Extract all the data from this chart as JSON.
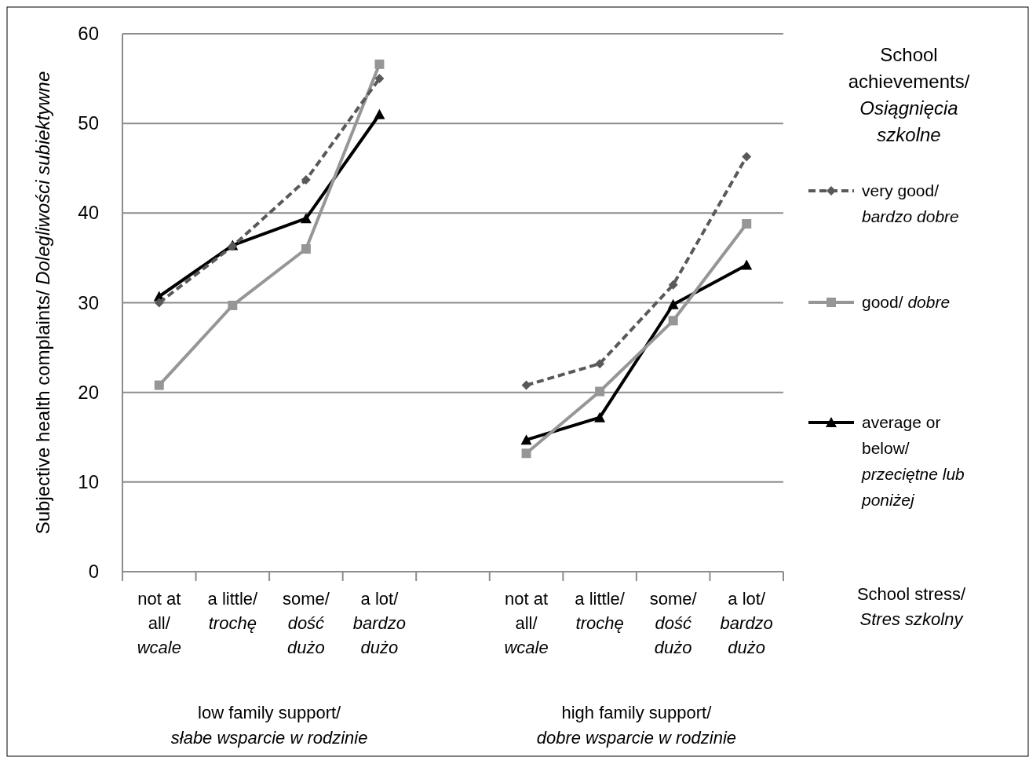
{
  "chart_data": {
    "type": "line",
    "ylabel": "Subjective health complaints/ Dolegliwości subiektywne",
    "xlabel": "School stress/\nStres szkolny",
    "legend_title": "School\nachievements/\nOsiągnięcia\nszkolne",
    "categories": [
      "not at\nall/\nwcale",
      "a little/\ntrochę",
      "some/\ndość\ndużo",
      "a lot/\nbardzo\ndużo",
      null,
      "not at\nall/\nwcale",
      "a little/\ntrochę",
      "some/\ndość\ndużo",
      "a lot/\nbardzo\ndużo"
    ],
    "ylim": [
      0,
      60
    ],
    "yticks": [
      0,
      10,
      20,
      30,
      40,
      50,
      60
    ],
    "grid": "y",
    "legend": "right",
    "series": [
      {
        "name": "very good/\nbardzo dobre",
        "color": "#595959",
        "marker": "diamond",
        "line_style": "dashed",
        "values": [
          30,
          36.3,
          43.7,
          55,
          null,
          20.8,
          23.2,
          32,
          46.3
        ]
      },
      {
        "name": "good/ dobre",
        "color": "#969696",
        "marker": "square",
        "line_style": "solid",
        "values": [
          20.8,
          29.7,
          36,
          56.6,
          null,
          13.2,
          20.1,
          28,
          38.8
        ]
      },
      {
        "name": "average or\nbelow/\nprzeciętne lub\nponiżej",
        "color": "#000000",
        "marker": "triangle",
        "line_style": "solid",
        "values": [
          30.7,
          36.4,
          39.4,
          51,
          null,
          14.7,
          17.2,
          29.8,
          34.2
        ]
      }
    ],
    "annotations": [
      "low family support/\nsłabe wsparcie w rodzinie",
      "high family support/\ndobre wsparcie w rodzinie"
    ]
  }
}
